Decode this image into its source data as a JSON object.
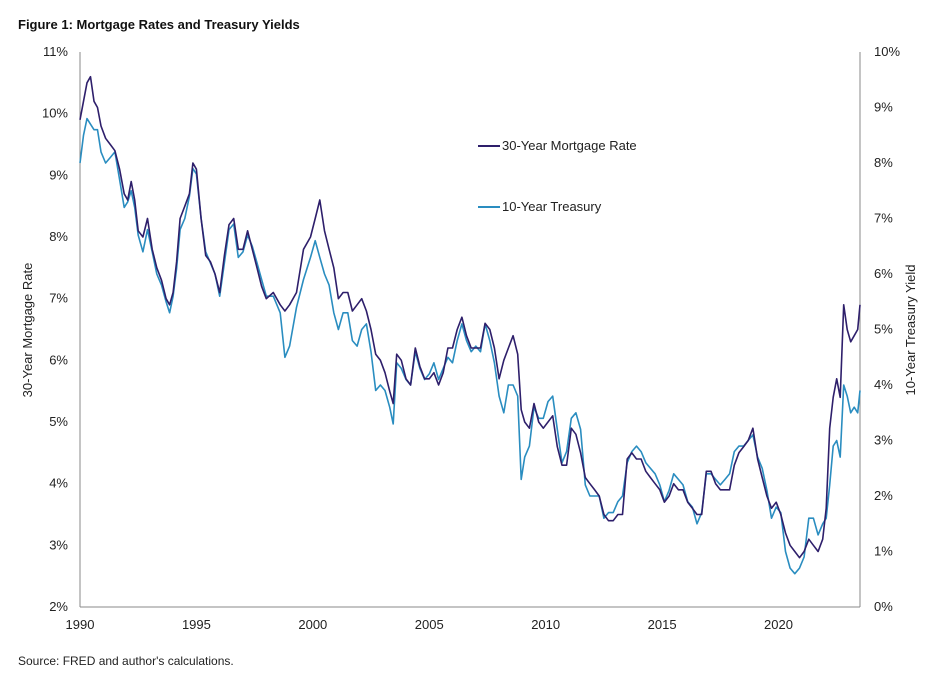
{
  "chart_data": {
    "type": "line",
    "title": "Figure 1: Mortgage Rates and Treasury Yields",
    "source": "Source: FRED and author's calculations.",
    "ylabel_left": "30-Year Mortgage Rate",
    "ylabel_right": "10-Year Treasury Yield",
    "ylim_left": [
      2,
      11
    ],
    "ylim_right": [
      0,
      10
    ],
    "xlim": [
      1990,
      2023.5
    ],
    "x_ticks": [
      1990,
      1995,
      2000,
      2005,
      2010,
      2015,
      2020
    ],
    "x_tick_labels": [
      "1990",
      "1995",
      "2000",
      "2005",
      "2010",
      "2015",
      "2020"
    ],
    "y_left_ticks": [
      2,
      3,
      4,
      5,
      6,
      7,
      8,
      9,
      10,
      11
    ],
    "y_left_tick_labels": [
      "2%",
      "3%",
      "4%",
      "5%",
      "6%",
      "7%",
      "8%",
      "9%",
      "10%",
      "11%"
    ],
    "y_right_ticks": [
      0,
      1,
      2,
      3,
      4,
      5,
      6,
      7,
      8,
      9,
      10
    ],
    "y_right_tick_labels": [
      "0%",
      "1%",
      "2%",
      "3%",
      "4%",
      "5%",
      "6%",
      "7%",
      "8%",
      "9%",
      "10%"
    ],
    "grid": false,
    "legend_position": "upper-center",
    "series": [
      {
        "name": "30-Year Mortgage Rate",
        "axis": "left",
        "color": "#2e1f6b",
        "x": [
          1990.0,
          1990.15,
          1990.3,
          1990.45,
          1990.6,
          1990.75,
          1990.9,
          1991.1,
          1991.3,
          1991.5,
          1991.7,
          1991.9,
          1992.05,
          1992.2,
          1992.35,
          1992.5,
          1992.7,
          1992.9,
          1993.1,
          1993.3,
          1993.5,
          1993.7,
          1993.85,
          1994.0,
          1994.15,
          1994.3,
          1994.5,
          1994.7,
          1994.85,
          1995.0,
          1995.2,
          1995.4,
          1995.6,
          1995.8,
          1996.0,
          1996.2,
          1996.4,
          1996.6,
          1996.8,
          1997.0,
          1997.2,
          1997.4,
          1997.6,
          1997.8,
          1998.0,
          1998.3,
          1998.6,
          1998.8,
          1999.0,
          1999.3,
          1999.6,
          1999.9,
          2000.1,
          2000.3,
          2000.5,
          2000.7,
          2000.9,
          2001.1,
          2001.3,
          2001.5,
          2001.7,
          2001.9,
          2002.1,
          2002.3,
          2002.5,
          2002.7,
          2002.9,
          2003.1,
          2003.3,
          2003.45,
          2003.6,
          2003.8,
          2004.0,
          2004.2,
          2004.4,
          2004.6,
          2004.8,
          2005.0,
          2005.2,
          2005.4,
          2005.6,
          2005.8,
          2006.0,
          2006.2,
          2006.4,
          2006.6,
          2006.8,
          2007.0,
          2007.2,
          2007.4,
          2007.6,
          2007.8,
          2008.0,
          2008.2,
          2008.4,
          2008.6,
          2008.8,
          2008.95,
          2009.1,
          2009.3,
          2009.5,
          2009.7,
          2009.9,
          2010.1,
          2010.3,
          2010.5,
          2010.7,
          2010.9,
          2011.1,
          2011.3,
          2011.5,
          2011.7,
          2011.9,
          2012.1,
          2012.3,
          2012.5,
          2012.7,
          2012.9,
          2013.1,
          2013.3,
          2013.5,
          2013.7,
          2013.9,
          2014.1,
          2014.3,
          2014.5,
          2014.7,
          2014.9,
          2015.1,
          2015.3,
          2015.5,
          2015.7,
          2015.9,
          2016.1,
          2016.3,
          2016.5,
          2016.7,
          2016.9,
          2017.1,
          2017.3,
          2017.5,
          2017.7,
          2017.9,
          2018.1,
          2018.3,
          2018.5,
          2018.7,
          2018.9,
          2019.1,
          2019.3,
          2019.5,
          2019.7,
          2019.9,
          2020.1,
          2020.3,
          2020.5,
          2020.7,
          2020.9,
          2021.1,
          2021.3,
          2021.5,
          2021.7,
          2021.9,
          2022.05,
          2022.2,
          2022.35,
          2022.5,
          2022.65,
          2022.8,
          2022.95,
          2023.1,
          2023.25,
          2023.4,
          2023.5
        ],
        "y": [
          9.9,
          10.2,
          10.5,
          10.6,
          10.2,
          10.1,
          9.8,
          9.6,
          9.5,
          9.4,
          9.1,
          8.7,
          8.6,
          8.9,
          8.6,
          8.1,
          8.0,
          8.3,
          7.8,
          7.5,
          7.3,
          7.0,
          6.9,
          7.1,
          7.6,
          8.3,
          8.5,
          8.7,
          9.2,
          9.1,
          8.3,
          7.7,
          7.6,
          7.4,
          7.1,
          7.7,
          8.2,
          8.3,
          7.8,
          7.8,
          8.1,
          7.8,
          7.5,
          7.2,
          7.0,
          7.1,
          6.9,
          6.8,
          6.9,
          7.1,
          7.8,
          8.0,
          8.3,
          8.6,
          8.1,
          7.8,
          7.5,
          7.0,
          7.1,
          7.1,
          6.8,
          6.9,
          7.0,
          6.8,
          6.5,
          6.1,
          6.0,
          5.8,
          5.5,
          5.3,
          6.1,
          6.0,
          5.7,
          5.6,
          6.2,
          5.9,
          5.7,
          5.7,
          5.8,
          5.6,
          5.8,
          6.2,
          6.2,
          6.5,
          6.7,
          6.4,
          6.2,
          6.2,
          6.2,
          6.6,
          6.5,
          6.2,
          5.7,
          6.0,
          6.2,
          6.4,
          6.1,
          5.2,
          5.0,
          4.9,
          5.3,
          5.0,
          4.9,
          5.0,
          5.1,
          4.6,
          4.3,
          4.3,
          4.9,
          4.8,
          4.5,
          4.1,
          4.0,
          3.9,
          3.8,
          3.5,
          3.4,
          3.4,
          3.5,
          3.5,
          4.4,
          4.5,
          4.4,
          4.4,
          4.2,
          4.1,
          4.0,
          3.9,
          3.7,
          3.8,
          4.0,
          3.9,
          3.9,
          3.7,
          3.6,
          3.5,
          3.5,
          4.2,
          4.2,
          4.0,
          3.9,
          3.9,
          3.9,
          4.3,
          4.5,
          4.6,
          4.7,
          4.9,
          4.4,
          4.1,
          3.8,
          3.6,
          3.7,
          3.5,
          3.2,
          3.0,
          2.9,
          2.8,
          2.9,
          3.1,
          3.0,
          2.9,
          3.1,
          3.6,
          4.9,
          5.4,
          5.7,
          5.4,
          6.9,
          6.5,
          6.3,
          6.4,
          6.5,
          6.9
        ],
        "_note": ""
      },
      {
        "name": "10-Year Treasury",
        "axis": "right",
        "color": "#2a8dc0",
        "x": [
          1990.0,
          1990.15,
          1990.3,
          1990.45,
          1990.6,
          1990.75,
          1990.9,
          1991.1,
          1991.3,
          1991.5,
          1991.7,
          1991.9,
          1992.05,
          1992.2,
          1992.35,
          1992.5,
          1992.7,
          1992.9,
          1993.1,
          1993.3,
          1993.5,
          1993.7,
          1993.85,
          1994.0,
          1994.15,
          1994.3,
          1994.5,
          1994.7,
          1994.85,
          1995.0,
          1995.2,
          1995.4,
          1995.6,
          1995.8,
          1996.0,
          1996.2,
          1996.4,
          1996.6,
          1996.8,
          1997.0,
          1997.2,
          1997.4,
          1997.6,
          1997.8,
          1998.0,
          1998.3,
          1998.6,
          1998.8,
          1999.0,
          1999.3,
          1999.6,
          1999.9,
          2000.1,
          2000.3,
          2000.5,
          2000.7,
          2000.9,
          2001.1,
          2001.3,
          2001.5,
          2001.7,
          2001.9,
          2002.1,
          2002.3,
          2002.5,
          2002.7,
          2002.9,
          2003.1,
          2003.3,
          2003.45,
          2003.6,
          2003.8,
          2004.0,
          2004.2,
          2004.4,
          2004.6,
          2004.8,
          2005.0,
          2005.2,
          2005.4,
          2005.6,
          2005.8,
          2006.0,
          2006.2,
          2006.4,
          2006.6,
          2006.8,
          2007.0,
          2007.2,
          2007.4,
          2007.6,
          2007.8,
          2008.0,
          2008.2,
          2008.4,
          2008.6,
          2008.8,
          2008.95,
          2009.1,
          2009.3,
          2009.5,
          2009.7,
          2009.9,
          2010.1,
          2010.3,
          2010.5,
          2010.7,
          2010.9,
          2011.1,
          2011.3,
          2011.5,
          2011.7,
          2011.9,
          2012.1,
          2012.3,
          2012.5,
          2012.7,
          2012.9,
          2013.1,
          2013.3,
          2013.5,
          2013.7,
          2013.9,
          2014.1,
          2014.3,
          2014.5,
          2014.7,
          2014.9,
          2015.1,
          2015.3,
          2015.5,
          2015.7,
          2015.9,
          2016.1,
          2016.3,
          2016.5,
          2016.7,
          2016.9,
          2017.1,
          2017.3,
          2017.5,
          2017.7,
          2017.9,
          2018.1,
          2018.3,
          2018.5,
          2018.7,
          2018.9,
          2019.1,
          2019.3,
          2019.5,
          2019.7,
          2019.9,
          2020.1,
          2020.3,
          2020.5,
          2020.7,
          2020.9,
          2021.1,
          2021.3,
          2021.5,
          2021.7,
          2021.9,
          2022.05,
          2022.2,
          2022.35,
          2022.5,
          2022.65,
          2022.8,
          2022.95,
          2023.1,
          2023.25,
          2023.4,
          2023.5
        ],
        "y": [
          8.0,
          8.5,
          8.8,
          8.7,
          8.6,
          8.6,
          8.2,
          8.0,
          8.1,
          8.2,
          7.7,
          7.2,
          7.3,
          7.5,
          7.2,
          6.7,
          6.4,
          6.8,
          6.4,
          6.0,
          5.8,
          5.5,
          5.3,
          5.6,
          6.1,
          6.8,
          7.0,
          7.4,
          7.9,
          7.8,
          7.0,
          6.4,
          6.2,
          6.0,
          5.6,
          6.2,
          6.8,
          6.9,
          6.3,
          6.4,
          6.7,
          6.5,
          6.2,
          5.9,
          5.6,
          5.6,
          5.3,
          4.5,
          4.7,
          5.4,
          5.9,
          6.3,
          6.6,
          6.3,
          6.0,
          5.8,
          5.3,
          5.0,
          5.3,
          5.3,
          4.8,
          4.7,
          5.0,
          5.1,
          4.6,
          3.9,
          4.0,
          3.9,
          3.6,
          3.3,
          4.4,
          4.3,
          4.1,
          4.0,
          4.6,
          4.3,
          4.1,
          4.2,
          4.4,
          4.1,
          4.3,
          4.5,
          4.4,
          4.8,
          5.1,
          4.8,
          4.6,
          4.7,
          4.6,
          5.1,
          4.8,
          4.4,
          3.8,
          3.5,
          4.0,
          4.0,
          3.8,
          2.3,
          2.7,
          2.9,
          3.6,
          3.4,
          3.4,
          3.7,
          3.8,
          3.2,
          2.6,
          2.8,
          3.4,
          3.5,
          3.2,
          2.2,
          2.0,
          2.0,
          2.0,
          1.6,
          1.7,
          1.7,
          1.9,
          2.0,
          2.6,
          2.8,
          2.9,
          2.8,
          2.6,
          2.5,
          2.4,
          2.2,
          1.9,
          2.1,
          2.4,
          2.3,
          2.2,
          1.9,
          1.8,
          1.5,
          1.7,
          2.4,
          2.4,
          2.3,
          2.2,
          2.3,
          2.4,
          2.8,
          2.9,
          2.9,
          3.0,
          3.1,
          2.7,
          2.5,
          2.1,
          1.6,
          1.8,
          1.7,
          1.0,
          0.7,
          0.6,
          0.7,
          0.9,
          1.6,
          1.6,
          1.3,
          1.5,
          1.6,
          2.2,
          2.9,
          3.0,
          2.7,
          4.0,
          3.8,
          3.5,
          3.6,
          3.5,
          3.9
        ],
        "_note": ""
      }
    ]
  }
}
